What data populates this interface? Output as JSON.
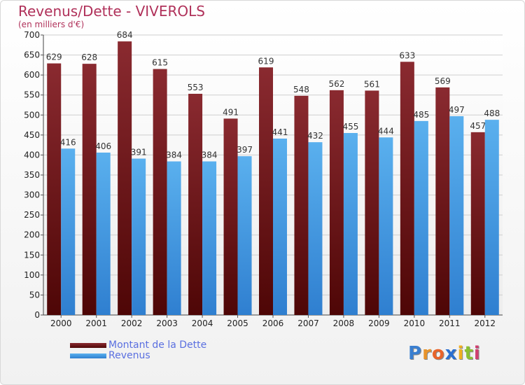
{
  "chart_data": {
    "type": "bar",
    "title": "Revenus/Dette - VIVEROLS",
    "subtitle": "(en milliers d'€)",
    "categories": [
      "2000",
      "2001",
      "2002",
      "2003",
      "2004",
      "2005",
      "2006",
      "2007",
      "2008",
      "2009",
      "2010",
      "2011",
      "2012"
    ],
    "series": [
      {
        "name": "Montant de la Dette",
        "color": "#6b1418",
        "values": [
          629,
          628,
          684,
          615,
          553,
          491,
          619,
          548,
          562,
          561,
          633,
          569,
          457
        ]
      },
      {
        "name": "Revenus",
        "color": "#4da3e8",
        "values": [
          416,
          406,
          391,
          384,
          384,
          397,
          441,
          432,
          455,
          444,
          485,
          497,
          488
        ]
      }
    ],
    "ylim": [
      0,
      700
    ],
    "yticks": [
      0,
      50,
      100,
      150,
      200,
      250,
      300,
      350,
      400,
      450,
      500,
      550,
      600,
      650,
      700
    ],
    "grid": true,
    "legend": "bottom-left"
  },
  "logo": {
    "text": "Proxiti",
    "letters": [
      "P",
      "r",
      "o",
      "x",
      "i",
      "t",
      "i"
    ],
    "colors": [
      "#3a7fd0",
      "#e8932a",
      "#e8632a",
      "#2a6fd0",
      "#f0b020",
      "#8ac030",
      "#d04070"
    ]
  }
}
